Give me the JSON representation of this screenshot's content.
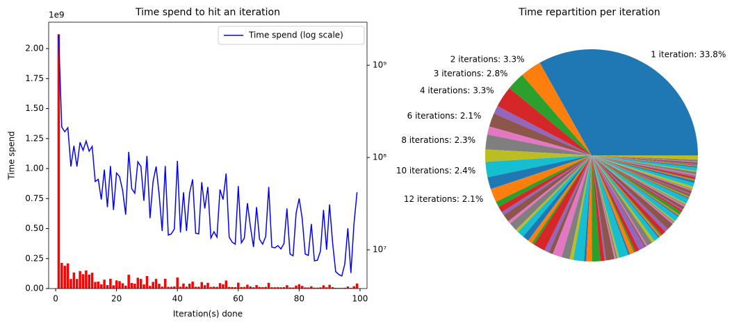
{
  "chart_data": [
    {
      "type": "bar_line",
      "title": "Time spend to hit an iteration",
      "xlabel": "Iteration(s) done",
      "ylabel": "Time spend",
      "y_offset_label": "1e9",
      "x": [
        1,
        2,
        3,
        4,
        5,
        6,
        7,
        8,
        9,
        10,
        11,
        12,
        13,
        14,
        15,
        16,
        17,
        18,
        19,
        20,
        21,
        22,
        23,
        24,
        25,
        26,
        27,
        28,
        29,
        30,
        31,
        32,
        33,
        34,
        35,
        36,
        37,
        38,
        39,
        40,
        41,
        42,
        43,
        44,
        45,
        46,
        47,
        48,
        49,
        50,
        51,
        52,
        53,
        54,
        55,
        56,
        57,
        58,
        59,
        60,
        61,
        62,
        63,
        64,
        65,
        66,
        67,
        68,
        69,
        70,
        71,
        72,
        73,
        74,
        75,
        76,
        77,
        78,
        79,
        80,
        81,
        82,
        83,
        84,
        85,
        86,
        87,
        88,
        89,
        90,
        91,
        92,
        93,
        94,
        95,
        96,
        97,
        98,
        99
      ],
      "values": [
        2120000000,
        214000000,
        190000000,
        210000000,
        79800000,
        134000000,
        79800000,
        146000000,
        120000000,
        151000000,
        117000000,
        132000000,
        55000000,
        58000000,
        35000000,
        74000000,
        29000000,
        81000000,
        27000000,
        68000000,
        62000000,
        44000000,
        24000000,
        115000000,
        46000000,
        41000000,
        90000000,
        80000000,
        34000000,
        104000000,
        22000000,
        55000000,
        80000000,
        40000000,
        16000000,
        81000000,
        14400000,
        14900000,
        16800000,
        92000000,
        15400000,
        42000000,
        16000000,
        41000000,
        58000000,
        15100000,
        14900000,
        54000000,
        28000000,
        48000000,
        13400000,
        15700000,
        13700000,
        45000000,
        35000000,
        67000000,
        13700000,
        12100000,
        11500000,
        49000000,
        11900000,
        13400000,
        32000000,
        17700000,
        10700000,
        29000000,
        13000000,
        11500000,
        13900000,
        48000000,
        10700000,
        10500000,
        11100000,
        10200000,
        11700000,
        28000000,
        9000000,
        8600000,
        25000000,
        36000000,
        22000000,
        9000000,
        8700000,
        19000000,
        7600000,
        7700000,
        9700000,
        27000000,
        10000000,
        31000000,
        11900000,
        5800000,
        5400000,
        5200000,
        7000000,
        17100000,
        5600000,
        19000000,
        42000000
      ],
      "bar_color": "#ff0000",
      "line_name": "Time spend (log scale)",
      "line_color": "#0000ff",
      "line_axis": "y2",
      "xlim": [
        -2.3,
        102.3
      ],
      "xticks": [
        0,
        20,
        40,
        60,
        80,
        100
      ],
      "ylim": [
        0,
        2220000000
      ],
      "yticks": [
        {
          "value": 0,
          "label": "0.00"
        },
        {
          "value": 250000000,
          "label": "0.25"
        },
        {
          "value": 500000000,
          "label": "0.50"
        },
        {
          "value": 750000000,
          "label": "0.75"
        },
        {
          "value": 1000000000,
          "label": "1.00"
        },
        {
          "value": 1250000000,
          "label": "1.25"
        },
        {
          "value": 1500000000,
          "label": "1.50"
        },
        {
          "value": 1750000000,
          "label": "1.75"
        },
        {
          "value": 2000000000,
          "label": "2.00"
        }
      ],
      "y2lim": [
        3800000,
        2930000000
      ],
      "y2log": true,
      "y2ticks": [
        {
          "value": 10000000,
          "label": "10⁷"
        },
        {
          "value": 100000000,
          "label": "10⁸"
        },
        {
          "value": 1000000000,
          "label": "10⁹"
        }
      ],
      "legend": "upper right"
    },
    {
      "type": "pie",
      "title": "Time repartition per iteration",
      "values": [
        33.8,
        3.3,
        2.8,
        3.3,
        1.27,
        2.1,
        1.27,
        2.3,
        1.91,
        2.4,
        1.87,
        2.1,
        0.88,
        0.93,
        0.56,
        1.18,
        0.46,
        1.29,
        0.43,
        1.08,
        0.99,
        0.7,
        0.38,
        1.83,
        0.73,
        0.65,
        1.44,
        1.28,
        0.54,
        1.66,
        0.35,
        0.88,
        1.28,
        0.64,
        0.26,
        1.29,
        0.23,
        0.24,
        0.27,
        1.47,
        0.25,
        0.67,
        0.26,
        0.65,
        0.93,
        0.24,
        0.24,
        0.86,
        0.45,
        0.77,
        0.21,
        0.25,
        0.22,
        0.72,
        0.56,
        1.07,
        0.22,
        0.19,
        0.18,
        0.78,
        0.19,
        0.21,
        0.51,
        0.28,
        0.17,
        0.46,
        0.21,
        0.18,
        0.22,
        0.77,
        0.17,
        0.17,
        0.18,
        0.16,
        0.19,
        0.45,
        0.14,
        0.14,
        0.4,
        0.57,
        0.35,
        0.14,
        0.14,
        0.3,
        0.12,
        0.12,
        0.15,
        0.43,
        0.16,
        0.49,
        0.19,
        0.09,
        0.09,
        0.08,
        0.11,
        0.27,
        0.09,
        0.3,
        0.67
      ],
      "value_labels": [
        "1 iteration: 33.8%",
        "2 iterations: 3.3%",
        "3 iterations: 2.8%",
        "4 iterations: 3.3%",
        null,
        "6 iterations: 2.1%",
        null,
        "8 iterations: 2.3%",
        null,
        "10 iterations: 2.4%",
        null,
        "12 iterations: 2.1%",
        null,
        null,
        null,
        null,
        null,
        null,
        null,
        null,
        null,
        null,
        null,
        null,
        null,
        null,
        null,
        null,
        null,
        null,
        null,
        null,
        null,
        null,
        null,
        null,
        null,
        null,
        null,
        null,
        null,
        null,
        null,
        null,
        null,
        null,
        null,
        null,
        null,
        null,
        null,
        null,
        null,
        null,
        null,
        null,
        null,
        null,
        null,
        null,
        null,
        null,
        null,
        null,
        null,
        null,
        null,
        null,
        null,
        null,
        null,
        null,
        null,
        null,
        null,
        null,
        null,
        null,
        null,
        null,
        null,
        null,
        null,
        null,
        null,
        null,
        null,
        null,
        null,
        null,
        null,
        null,
        null,
        null,
        null,
        null,
        null,
        null,
        null
      ],
      "colors": [
        "#1f77b4",
        "#ff7f0e",
        "#2ca02c",
        "#d62728",
        "#9467bd",
        "#8c564b",
        "#e377c2",
        "#7f7f7f",
        "#bcbd22",
        "#17becf"
      ]
    }
  ]
}
